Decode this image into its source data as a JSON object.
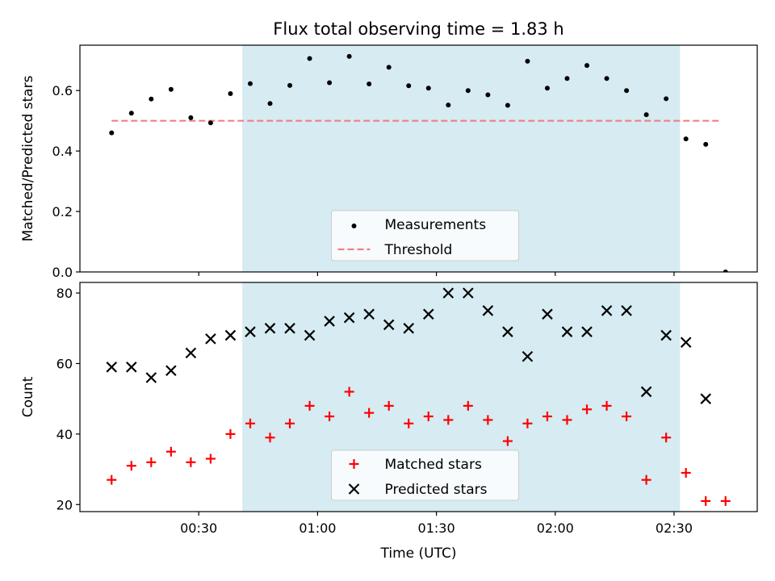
{
  "figure": {
    "title": "Flux total observing time = 1.83 h"
  },
  "chart_data": [
    {
      "type": "scatter",
      "panel": "top",
      "ylabel": "Matched/Predicted stars",
      "ylim": [
        0.0,
        0.75
      ],
      "yticks": [
        0.0,
        0.2,
        0.4,
        0.6
      ],
      "ytick_labels": [
        "0.0",
        "0.2",
        "0.4",
        "0.6"
      ],
      "xlim_minutes": [
        0,
        171
      ],
      "shaded_span_minutes": [
        41,
        151.5
      ],
      "shade_color": "#add8e6",
      "threshold": {
        "name": "Threshold",
        "value": 0.5,
        "x_range_minutes": [
          8,
          162
        ],
        "color": "#f08080"
      },
      "series": [
        {
          "name": "Measurements",
          "color": "#000000",
          "x_minutes": [
            8,
            13,
            18,
            23,
            28,
            33,
            38,
            43,
            48,
            53,
            58,
            63,
            68,
            73,
            78,
            83,
            88,
            93,
            98,
            103,
            108,
            113,
            118,
            123,
            128,
            133,
            138,
            143,
            148,
            153,
            158,
            163
          ],
          "values": [
            0.46,
            0.525,
            0.572,
            0.604,
            0.51,
            0.493,
            0.59,
            0.623,
            0.557,
            0.617,
            0.706,
            0.626,
            0.713,
            0.622,
            0.677,
            0.616,
            0.608,
            0.552,
            0.6,
            0.586,
            0.551,
            0.697,
            0.608,
            0.64,
            0.683,
            0.64,
            0.6,
            0.52,
            0.573,
            0.44,
            0.422,
            0.0
          ]
        }
      ],
      "legend": {
        "placement": "lower center",
        "entries": [
          "Measurements",
          "Threshold"
        ]
      }
    },
    {
      "type": "scatter",
      "panel": "bottom",
      "xlabel": "Time (UTC)",
      "ylabel": "Count",
      "ylim": [
        18,
        83
      ],
      "yticks": [
        20,
        40,
        60,
        80
      ],
      "ytick_labels": [
        "20",
        "40",
        "60",
        "80"
      ],
      "xlim_minutes": [
        0,
        171
      ],
      "xticks_minutes": [
        30,
        60,
        90,
        120,
        150
      ],
      "xtick_labels": [
        "00:30",
        "01:00",
        "01:30",
        "02:00",
        "02:30"
      ],
      "shaded_span_minutes": [
        41,
        151.5
      ],
      "series": [
        {
          "name": "Matched stars",
          "marker": "+",
          "color": "#ff0000",
          "x_minutes": [
            8,
            13,
            18,
            23,
            28,
            33,
            38,
            43,
            48,
            53,
            58,
            63,
            68,
            73,
            78,
            83,
            88,
            93,
            98,
            103,
            108,
            113,
            118,
            123,
            128,
            133,
            138,
            143,
            148,
            153,
            158,
            163
          ],
          "values": [
            27,
            31,
            32,
            35,
            32,
            33,
            40,
            43,
            39,
            43,
            48,
            45,
            52,
            46,
            48,
            43,
            45,
            44,
            48,
            44,
            38,
            43,
            45,
            44,
            47,
            48,
            45,
            27,
            39,
            29,
            21,
            21
          ]
        },
        {
          "name": "Predicted stars",
          "marker": "x",
          "color": "#000000",
          "x_minutes": [
            8,
            13,
            18,
            23,
            28,
            33,
            38,
            43,
            48,
            53,
            58,
            63,
            68,
            73,
            78,
            83,
            88,
            93,
            98,
            103,
            108,
            113,
            118,
            123,
            128,
            133,
            138,
            143,
            148,
            153,
            158
          ],
          "values": [
            59,
            59,
            56,
            58,
            63,
            67,
            68,
            69,
            70,
            70,
            68,
            72,
            73,
            74,
            71,
            70,
            74,
            80,
            80,
            75,
            69,
            62,
            74,
            69,
            69,
            75,
            75,
            52,
            68,
            66,
            50
          ]
        }
      ],
      "legend": {
        "placement": "lower center",
        "entries": [
          "Matched stars",
          "Predicted stars"
        ]
      }
    }
  ]
}
